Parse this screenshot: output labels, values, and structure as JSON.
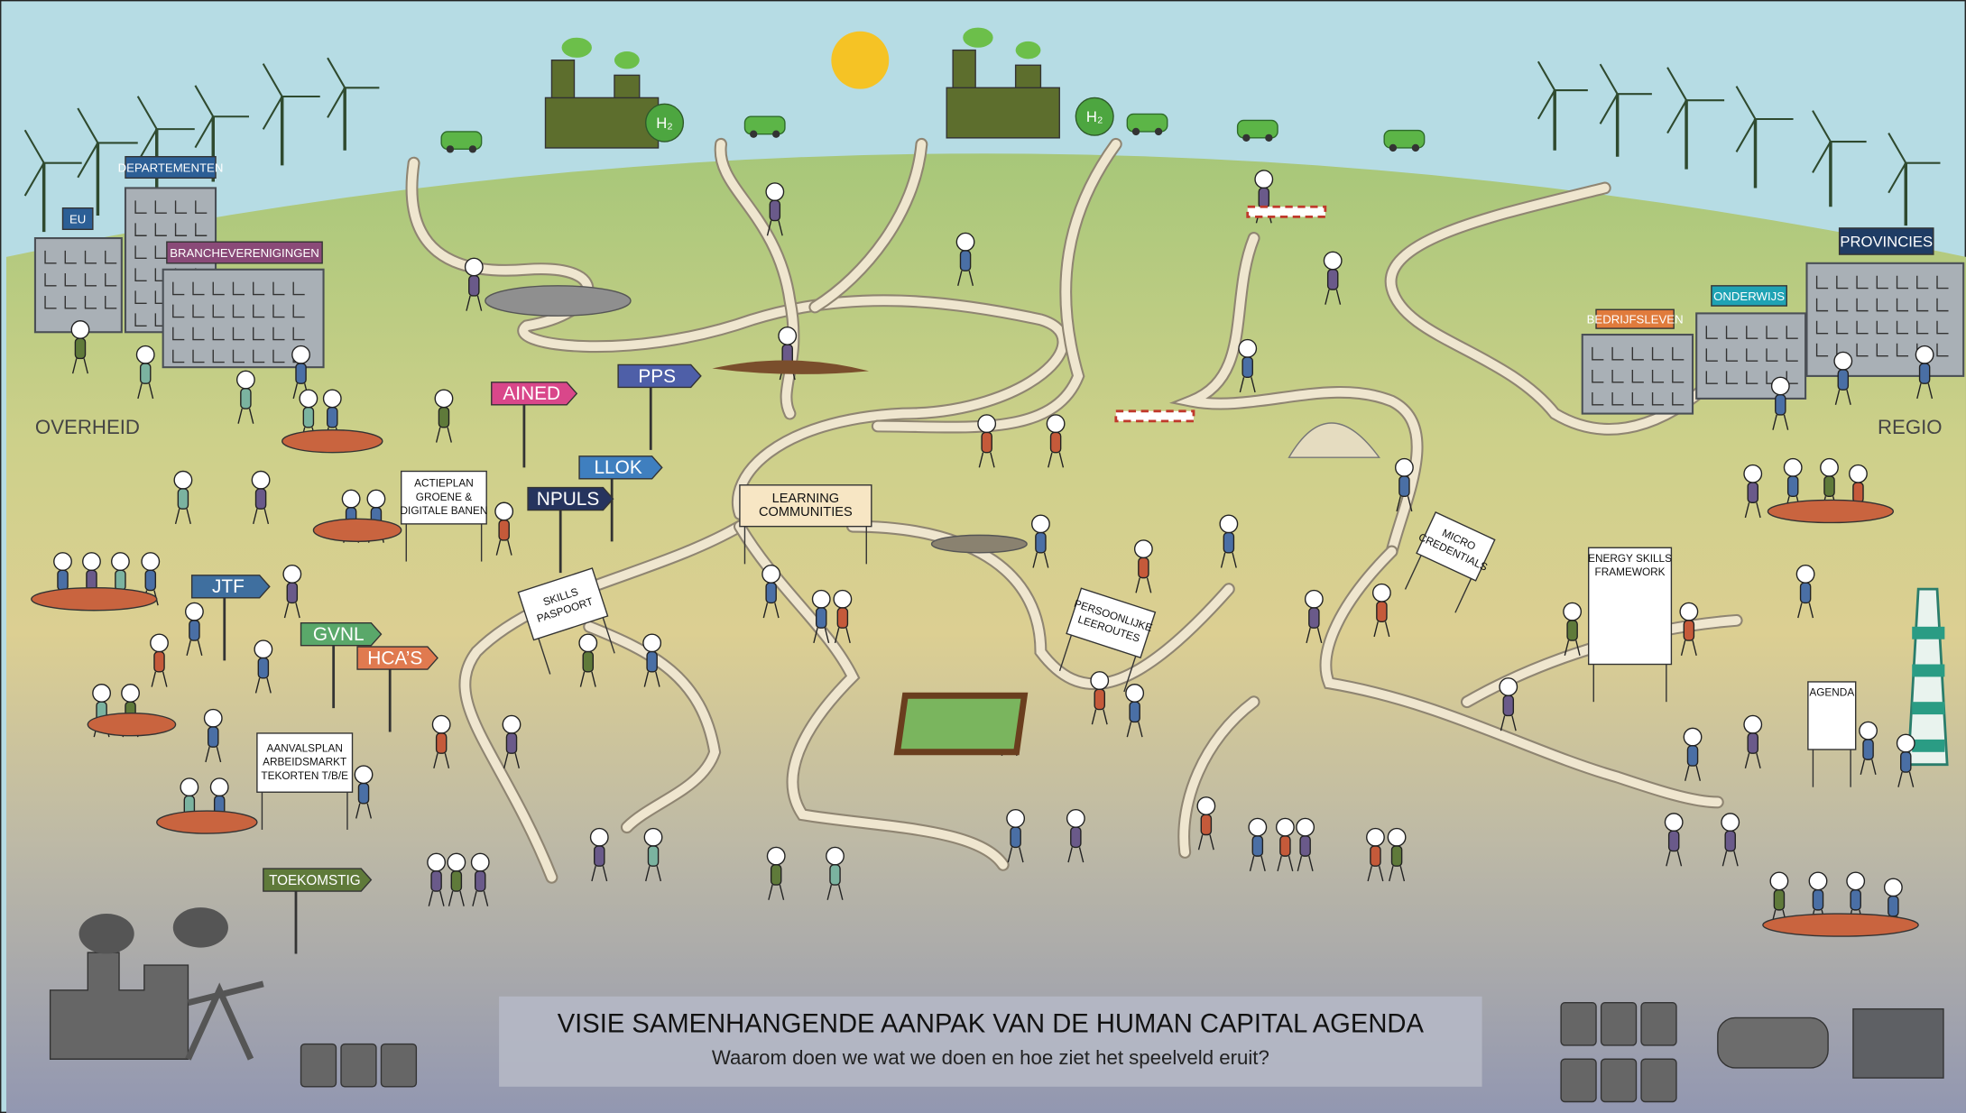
{
  "header": {
    "title": "VISIE SAMENHANGENDE AANPAK VAN DE HUMAN CAPITAL AGENDA",
    "subtitle": "Waarom doen we wat we doen en hoe ziet het speelveld eruit?"
  },
  "regions": {
    "left": "OVERHEID",
    "right": "REGIO"
  },
  "buildings": [
    {
      "label": "EU"
    },
    {
      "label": "DEPARTEMENTEN"
    },
    {
      "label": "BRANCHEVERENIGINGEN"
    },
    {
      "label": "BEDRIJFSLEVEN"
    },
    {
      "label": "ONDERWIJS"
    },
    {
      "label": "PROVINCIES"
    }
  ],
  "signposts": [
    {
      "label": "AINED"
    },
    {
      "label": "PPS"
    },
    {
      "label": "LLOK"
    },
    {
      "label": "NPULS"
    },
    {
      "label": "JTF"
    },
    {
      "label": "GVNL"
    },
    {
      "label": "HCA’S"
    },
    {
      "label": "TOEKOMSTIG"
    }
  ],
  "boards": [
    {
      "lines": [
        "ACTIEPLAN",
        "GROENE &",
        "DIGITALE BANEN"
      ]
    },
    {
      "lines": [
        "AANVALSPLAN",
        "ARBEIDSMARKT",
        "TEKORTEN T/B/E"
      ]
    },
    {
      "lines": [
        "LEARNING",
        "COMMUNITIES"
      ]
    },
    {
      "lines": [
        "SKILLS",
        "PASPOORT"
      ]
    },
    {
      "lines": [
        "PERSOONLIJKE",
        "LEEROUTES"
      ]
    },
    {
      "lines": [
        "MICRO",
        "CREDENTIALS"
      ]
    },
    {
      "lines": [
        "ENERGY SKILLS",
        "FRAMEWORK"
      ]
    },
    {
      "lines": [
        "AGENDA"
      ]
    }
  ],
  "factories": [
    {
      "label": "H₂"
    },
    {
      "label": "H₂"
    }
  ]
}
